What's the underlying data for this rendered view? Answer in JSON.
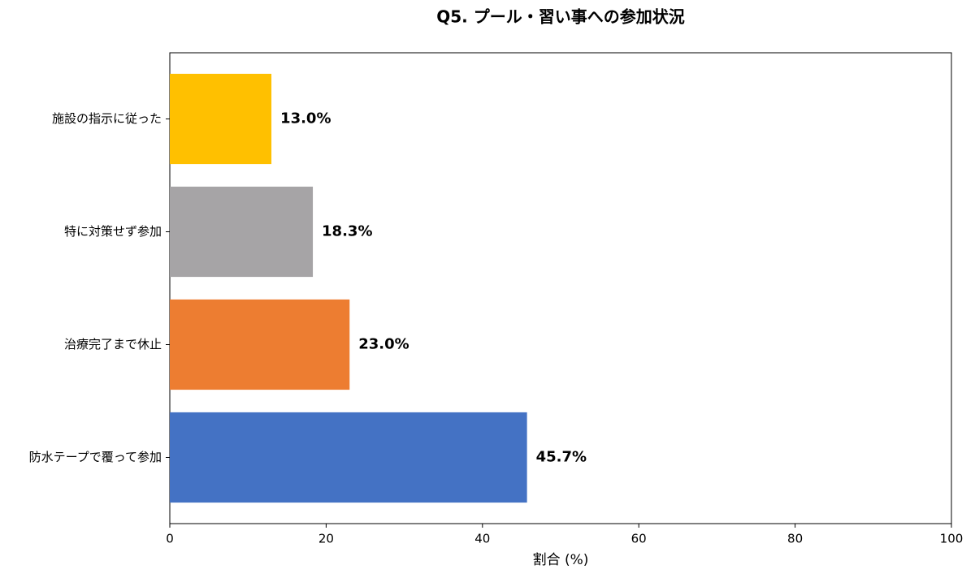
{
  "chart_data": {
    "type": "bar",
    "orientation": "horizontal",
    "title": "Q5. プール・習い事への参加状況",
    "x_label": "割合 (%)",
    "categories": [
      "施設の指示に従った",
      "特に対策せず参加",
      "治療完了まで休止",
      "防水テープで覆って参加"
    ],
    "values": [
      13.0,
      18.3,
      23.0,
      45.7
    ],
    "value_labels": [
      "13.0%",
      "18.3%",
      "23.0%",
      "45.7%"
    ],
    "colors": [
      "#ffc000",
      "#a6a4a6",
      "#ed7d31",
      "#4472c4"
    ],
    "xlim": [
      0,
      100
    ],
    "xticks": [
      0,
      20,
      40,
      60,
      80,
      100
    ]
  }
}
